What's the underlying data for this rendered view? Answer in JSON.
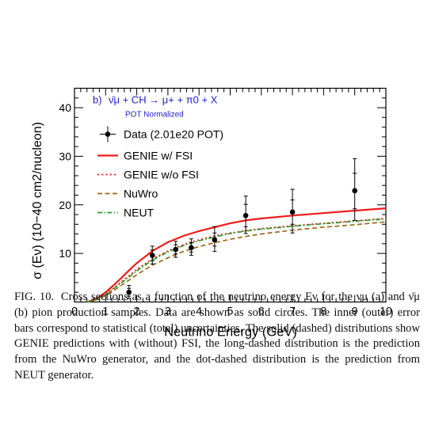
{
  "chart_data": {
    "type": "line",
    "panel_label": "b)",
    "reaction": "ν̄μ + CH → μ+ + π0 + X",
    "subtitle": "POT Normalized",
    "xlabel": "Neutrino Energy (GeV)",
    "ylabel": "σ (Eν) (10−40 cm2/nucleon)",
    "xlim": [
      0,
      10
    ],
    "ylim": [
      0,
      44
    ],
    "x_ticks": [
      "0",
      "1",
      "2",
      "3",
      "4",
      "5",
      "6",
      "7",
      "8",
      "9",
      "10"
    ],
    "y_ticks": [
      "10",
      "20",
      "30",
      "40"
    ],
    "legend_position": "top-left",
    "data_points": {
      "name": "Data (2.01e20 POT)",
      "points": [
        {
          "x": 1.75,
          "y": 2.0,
          "inner": [
            1.2,
            2.8
          ],
          "outer": [
            0.7,
            3.4
          ]
        },
        {
          "x": 2.5,
          "y": 9.6,
          "inner": [
            8.5,
            10.7
          ],
          "outer": [
            7.8,
            11.5
          ]
        },
        {
          "x": 3.25,
          "y": 10.8,
          "inner": [
            9.9,
            11.8
          ],
          "outer": [
            9.2,
            12.5
          ]
        },
        {
          "x": 3.75,
          "y": 11.2,
          "inner": [
            10.3,
            12.2
          ],
          "outer": [
            9.6,
            13.0
          ]
        },
        {
          "x": 4.5,
          "y": 12.8,
          "inner": [
            11.5,
            14.2
          ],
          "outer": [
            10.4,
            15.5
          ]
        },
        {
          "x": 5.5,
          "y": 17.8,
          "inner": [
            15.5,
            20.1
          ],
          "outer": [
            14.1,
            21.8
          ]
        },
        {
          "x": 7.0,
          "y": 18.5,
          "inner": [
            16.0,
            21.0
          ],
          "outer": [
            14.2,
            23.2
          ]
        },
        {
          "x": 9.0,
          "y": 22.9,
          "inner": [
            19.2,
            26.5
          ],
          "outer": [
            16.8,
            29.5
          ]
        }
      ]
    },
    "series": [
      {
        "name": "GENIE w/ FSI",
        "style": "solid",
        "color": "#ee1c1c",
        "x": [
          0.4,
          0.6,
          0.8,
          1.0,
          1.25,
          1.5,
          1.75,
          2.0,
          2.5,
          3.0,
          3.5,
          4.0,
          4.5,
          5.0,
          5.5,
          6.0,
          7.0,
          8.0,
          9.0,
          10.0
        ],
        "y": [
          0.0,
          0.4,
          1.1,
          2.0,
          3.4,
          4.9,
          6.5,
          8.0,
          10.5,
          12.3,
          13.6,
          14.6,
          15.4,
          16.2,
          16.8,
          17.2,
          17.8,
          18.3,
          18.8,
          19.3
        ]
      },
      {
        "name": "GENIE w/o FSI",
        "style": "dotted",
        "color": "#ee1c1c",
        "x": [
          0.4,
          0.6,
          0.8,
          1.0,
          1.25,
          1.5,
          1.75,
          2.0,
          2.5,
          3.0,
          3.5,
          4.0,
          4.5,
          5.0,
          5.5,
          6.0,
          7.0,
          8.0,
          9.0,
          10.0
        ],
        "y": [
          0.0,
          0.3,
          0.8,
          1.6,
          2.8,
          4.1,
          5.4,
          6.7,
          8.9,
          10.5,
          11.8,
          12.8,
          13.6,
          14.2,
          14.7,
          15.1,
          15.7,
          16.2,
          16.7,
          17.2
        ]
      },
      {
        "name": "NuWro",
        "style": "long-dashed",
        "color": "#9a6b1a",
        "x": [
          0.4,
          0.6,
          0.8,
          1.0,
          1.25,
          1.5,
          1.75,
          2.0,
          2.5,
          3.0,
          3.5,
          4.0,
          4.5,
          5.0,
          5.5,
          6.0,
          7.0,
          8.0,
          9.0,
          10.0
        ],
        "y": [
          0.0,
          0.25,
          0.7,
          1.3,
          2.3,
          3.4,
          4.5,
          5.6,
          7.6,
          9.1,
          10.4,
          11.4,
          12.2,
          12.9,
          13.5,
          14.0,
          14.8,
          15.4,
          15.9,
          16.5
        ]
      },
      {
        "name": "NEUT",
        "style": "dash-dot",
        "color": "#2c9e2c",
        "x": [
          0.4,
          0.6,
          0.8,
          1.0,
          1.25,
          1.5,
          1.75,
          2.0,
          2.5,
          3.0,
          3.5,
          4.0,
          4.5,
          5.0,
          5.5,
          6.0,
          7.0,
          8.0,
          9.0,
          10.0
        ],
        "y": [
          0.0,
          0.3,
          0.8,
          1.5,
          2.7,
          3.9,
          5.1,
          6.4,
          8.6,
          10.3,
          11.6,
          12.6,
          13.4,
          14.1,
          14.6,
          15.0,
          15.6,
          16.1,
          16.6,
          17.1
        ]
      }
    ]
  },
  "caption": {
    "label": "FIG. 10.",
    "text": "Cross sections as a function of the neutrino energy Eν for the νμ (a) and ν̄μ (b) pion production samples. Data are shown as solid circles. The inner (outer) error bars correspond to statistical (total) uncertainties. The solid (dashed) distributions show GENIE predictions with (without) FSI, the long-dashed distribution is the prediction from the NuWro generator, and the dot-dashed distribution is the prediction from NEUT generator."
  }
}
